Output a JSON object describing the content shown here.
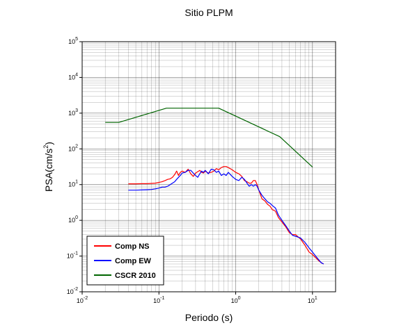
{
  "chart_data": {
    "type": "line",
    "title": "Sitio PLPM",
    "xlabel": "Periodo (s)",
    "ylabel_base": "PSA(cm/s",
    "ylabel_exp": "2",
    "ylabel_close": ")",
    "x_scale": "log",
    "y_scale": "log",
    "xlim": [
      0.01,
      20
    ],
    "ylim": [
      0.01,
      100000
    ],
    "grid": true,
    "legend_position": "bottom-left",
    "x_ticks": [
      {
        "base": "10",
        "exp": "-2",
        "value": 0.01
      },
      {
        "base": "10",
        "exp": "-1",
        "value": 0.1
      },
      {
        "base": "10",
        "exp": "0",
        "value": 1
      },
      {
        "base": "10",
        "exp": "1",
        "value": 10
      }
    ],
    "y_ticks": [
      {
        "base": "10",
        "exp": "-2",
        "value": 0.01
      },
      {
        "base": "10",
        "exp": "-1",
        "value": 0.1
      },
      {
        "base": "10",
        "exp": "0",
        "value": 1
      },
      {
        "base": "10",
        "exp": "1",
        "value": 10
      },
      {
        "base": "10",
        "exp": "2",
        "value": 100
      },
      {
        "base": "10",
        "exp": "3",
        "value": 1000
      },
      {
        "base": "10",
        "exp": "4",
        "value": 10000
      },
      {
        "base": "10",
        "exp": "5",
        "value": 100000
      }
    ],
    "series": [
      {
        "name": "Comp NS",
        "color": "#ff0000",
        "x": [
          0.04,
          0.05,
          0.06,
          0.07,
          0.08,
          0.09,
          0.1,
          0.11,
          0.12,
          0.13,
          0.14,
          0.15,
          0.16,
          0.17,
          0.18,
          0.19,
          0.2,
          0.22,
          0.24,
          0.26,
          0.28,
          0.3,
          0.32,
          0.34,
          0.36,
          0.38,
          0.4,
          0.44,
          0.48,
          0.52,
          0.56,
          0.6,
          0.65,
          0.7,
          0.75,
          0.8,
          0.9,
          1.0,
          1.1,
          1.2,
          1.3,
          1.4,
          1.5,
          1.6,
          1.7,
          1.8,
          1.9,
          2.0,
          2.2,
          2.4,
          2.6,
          2.8,
          3.0,
          3.3,
          3.6,
          4.0,
          4.5,
          5.0,
          5.5,
          6.0,
          7.0,
          8.0,
          9.0,
          10.0,
          11.0,
          12.0,
          13.0,
          14.0
        ],
        "y": [
          10.5,
          10.5,
          10.6,
          10.6,
          10.8,
          11.0,
          11.5,
          12.0,
          13.0,
          14.0,
          14.5,
          16.0,
          19.0,
          24.0,
          18.0,
          22.0,
          24.0,
          22.0,
          27.0,
          20.0,
          17.0,
          21.0,
          23.0,
          25.0,
          22.0,
          21.0,
          24.0,
          21.0,
          22.0,
          24.0,
          28.0,
          26.0,
          30.0,
          32.0,
          32.0,
          30.0,
          26.0,
          22.0,
          20.0,
          17.0,
          13.0,
          12.0,
          11.0,
          11.0,
          13.0,
          13.0,
          10.0,
          7.0,
          4.0,
          3.5,
          2.8,
          2.5,
          2.0,
          1.8,
          1.2,
          0.9,
          0.65,
          0.45,
          0.4,
          0.4,
          0.3,
          0.2,
          0.13,
          0.11,
          0.09,
          0.075,
          0.065,
          0.06
        ]
      },
      {
        "name": "Comp EW",
        "color": "#0000ff",
        "x": [
          0.04,
          0.05,
          0.06,
          0.07,
          0.08,
          0.09,
          0.1,
          0.11,
          0.12,
          0.13,
          0.14,
          0.15,
          0.16,
          0.17,
          0.18,
          0.19,
          0.2,
          0.22,
          0.24,
          0.26,
          0.28,
          0.3,
          0.32,
          0.34,
          0.36,
          0.38,
          0.4,
          0.44,
          0.48,
          0.52,
          0.56,
          0.6,
          0.65,
          0.7,
          0.75,
          0.8,
          0.9,
          1.0,
          1.1,
          1.2,
          1.3,
          1.4,
          1.5,
          1.6,
          1.7,
          1.8,
          1.9,
          2.0,
          2.2,
          2.4,
          2.6,
          2.8,
          3.0,
          3.3,
          3.6,
          4.0,
          4.5,
          5.0,
          5.5,
          6.0,
          7.0,
          8.0,
          9.0,
          10.0,
          11.0,
          12.0,
          13.0,
          14.0
        ],
        "y": [
          7.0,
          7.0,
          7.1,
          7.2,
          7.3,
          7.6,
          8.0,
          8.5,
          8.5,
          9.0,
          10.0,
          11.0,
          12.0,
          14.0,
          16.0,
          18.0,
          21.0,
          22.0,
          25.0,
          25.0,
          21.0,
          18.0,
          16.0,
          20.0,
          24.0,
          22.0,
          25.0,
          20.0,
          27.0,
          26.0,
          22.0,
          24.0,
          18.0,
          20.0,
          18.0,
          22.0,
          17.0,
          14.0,
          13.0,
          16.0,
          14.0,
          11.0,
          9.0,
          10.0,
          9.0,
          10.0,
          9.0,
          7.0,
          5.0,
          4.0,
          3.3,
          3.0,
          2.6,
          2.2,
          1.4,
          1.0,
          0.7,
          0.5,
          0.38,
          0.36,
          0.32,
          0.24,
          0.17,
          0.13,
          0.1,
          0.08,
          0.065,
          0.06
        ]
      },
      {
        "name": "CSCR 2010",
        "color": "#006400",
        "x": [
          0.02,
          0.03,
          0.125,
          0.6,
          3.75,
          10.0
        ],
        "y": [
          550,
          550,
          1375,
          1375,
          220,
          31
        ]
      }
    ]
  }
}
